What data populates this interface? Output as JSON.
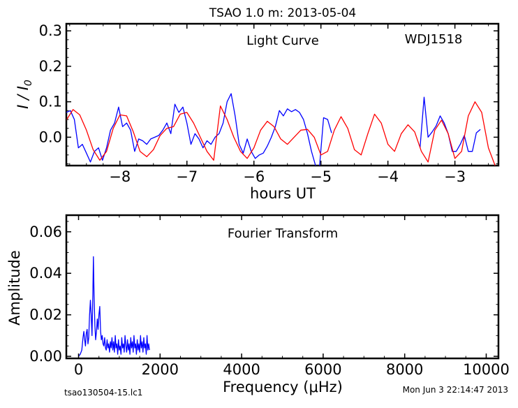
{
  "title": "TSAO 1.0 m:  2013-05-04",
  "footer_left": "tsao130504-15.lc1",
  "footer_right": "Mon Jun  3 22:14:47 2013",
  "chart_data": [
    {
      "type": "line",
      "annotation": "Light Curve",
      "object": "WDJ1518",
      "xlabel": "hours UT",
      "ylabel": "I / I0",
      "xlim": [
        -8.8,
        -2.35
      ],
      "ylim": [
        -0.08,
        0.32
      ],
      "xticks": [
        -8,
        -7,
        -6,
        -5,
        -4,
        -3
      ],
      "xtick_labels": [
        "−8",
        "−7",
        "−6",
        "−5",
        "−4",
        "−3"
      ],
      "yticks": [
        0.0,
        0.1,
        0.2,
        0.3
      ],
      "ytick_labels": [
        "0.0",
        "0.1",
        "0.2",
        "0.3"
      ],
      "series": [
        {
          "color": "#0000ff",
          "segments": [
            [
              [
                -8.8,
                0.07
              ],
              [
                -8.74,
                0.075
              ],
              [
                -8.68,
                0.05
              ],
              [
                -8.62,
                -0.03
              ],
              [
                -8.56,
                -0.02
              ],
              [
                -8.5,
                -0.045
              ],
              [
                -8.44,
                -0.07
              ],
              [
                -8.38,
                -0.04
              ],
              [
                -8.32,
                -0.03
              ],
              [
                -8.26,
                -0.065
              ],
              [
                -8.2,
                -0.03
              ],
              [
                -8.14,
                0.02
              ],
              [
                -8.08,
                0.04
              ],
              [
                -8.02,
                0.085
              ],
              [
                -7.96,
                0.03
              ],
              [
                -7.9,
                0.04
              ],
              [
                -7.84,
                0.02
              ],
              [
                -7.78,
                -0.04
              ],
              [
                -7.72,
                -0.005
              ],
              [
                -7.66,
                -0.01
              ],
              [
                -7.6,
                -0.02
              ],
              [
                -7.54,
                -0.005
              ],
              [
                -7.48,
                0.0
              ],
              [
                -7.42,
                0.005
              ],
              [
                -7.36,
                0.02
              ],
              [
                -7.3,
                0.04
              ],
              [
                -7.24,
                0.01
              ],
              [
                -7.18,
                0.093
              ],
              [
                -7.12,
                0.07
              ],
              [
                -7.06,
                0.085
              ],
              [
                -7.0,
                0.04
              ],
              [
                -6.94,
                -0.02
              ],
              [
                -6.88,
                0.01
              ],
              [
                -6.82,
                -0.005
              ],
              [
                -6.76,
                -0.03
              ],
              [
                -6.7,
                -0.01
              ],
              [
                -6.64,
                -0.02
              ],
              [
                -6.58,
                0.0
              ],
              [
                -6.52,
                0.01
              ],
              [
                -6.46,
                0.04
              ],
              [
                -6.4,
                0.1
              ],
              [
                -6.34,
                0.123
              ],
              [
                -6.28,
                0.06
              ],
              [
                -6.22,
                -0.02
              ],
              [
                -6.16,
                -0.045
              ],
              [
                -6.1,
                -0.005
              ],
              [
                -6.04,
                -0.04
              ],
              [
                -5.98,
                -0.06
              ],
              [
                -5.92,
                -0.05
              ],
              [
                -5.86,
                -0.045
              ],
              [
                -5.8,
                -0.025
              ],
              [
                -5.74,
                0.0
              ],
              [
                -5.68,
                0.03
              ],
              [
                -5.62,
                0.075
              ],
              [
                -5.56,
                0.06
              ],
              [
                -5.5,
                0.08
              ],
              [
                -5.44,
                0.072
              ],
              [
                -5.38,
                0.078
              ],
              [
                -5.32,
                0.07
              ],
              [
                -5.26,
                0.05
              ],
              [
                -5.2,
                0.01
              ],
              [
                -5.14,
                -0.04
              ],
              [
                -5.08,
                -0.08
              ]
            ],
            [
              [
                -5.02,
                -0.08
              ],
              [
                -4.96,
                0.055
              ],
              [
                -4.9,
                0.05
              ],
              [
                -4.84,
                0.012
              ]
            ],
            [
              [
                -3.52,
                -0.03
              ],
              [
                -3.46,
                0.113
              ],
              [
                -3.4,
                0.0
              ],
              [
                -3.34,
                0.015
              ],
              [
                -3.28,
                0.032
              ],
              [
                -3.22,
                0.06
              ],
              [
                -3.16,
                0.04
              ],
              [
                -3.1,
                0.01
              ],
              [
                -3.04,
                -0.04
              ],
              [
                -2.98,
                -0.04
              ],
              [
                -2.92,
                -0.02
              ],
              [
                -2.86,
                0.005
              ],
              [
                -2.8,
                -0.04
              ],
              [
                -2.74,
                -0.04
              ],
              [
                -2.68,
                0.012
              ],
              [
                -2.62,
                0.022
              ]
            ]
          ]
        },
        {
          "color": "#ff0000",
          "segments": [
            [
              [
                -8.8,
                0.048
              ],
              [
                -8.7,
                0.078
              ],
              [
                -8.6,
                0.063
              ],
              [
                -8.5,
                0.02
              ],
              [
                -8.4,
                -0.035
              ],
              [
                -8.3,
                -0.065
              ],
              [
                -8.2,
                -0.04
              ],
              [
                -8.1,
                0.025
              ],
              [
                -8.0,
                0.063
              ],
              [
                -7.9,
                0.06
              ],
              [
                -7.8,
                0.015
              ],
              [
                -7.7,
                -0.04
              ],
              [
                -7.6,
                -0.055
              ],
              [
                -7.5,
                -0.035
              ],
              [
                -7.4,
                0.005
              ],
              [
                -7.3,
                0.025
              ],
              [
                -7.2,
                0.03
              ],
              [
                -7.1,
                0.065
              ],
              [
                -7.0,
                0.07
              ],
              [
                -6.9,
                0.04
              ],
              [
                -6.8,
                0.0
              ],
              [
                -6.7,
                -0.04
              ],
              [
                -6.6,
                -0.065
              ],
              [
                -6.5,
                0.088
              ],
              [
                -6.4,
                0.05
              ],
              [
                -6.3,
                0.0
              ],
              [
                -6.2,
                -0.04
              ],
              [
                -6.1,
                -0.06
              ],
              [
                -6.0,
                -0.03
              ],
              [
                -5.9,
                0.02
              ],
              [
                -5.8,
                0.045
              ],
              [
                -5.7,
                0.03
              ],
              [
                -5.6,
                -0.005
              ],
              [
                -5.5,
                -0.02
              ],
              [
                -5.4,
                0.0
              ],
              [
                -5.3,
                0.02
              ],
              [
                -5.2,
                0.022
              ],
              [
                -5.1,
                0.0
              ],
              [
                -5.0,
                -0.05
              ],
              [
                -4.9,
                -0.04
              ],
              [
                -4.8,
                0.02
              ],
              [
                -4.7,
                0.058
              ],
              [
                -4.6,
                0.025
              ],
              [
                -4.5,
                -0.035
              ],
              [
                -4.4,
                -0.05
              ],
              [
                -4.3,
                0.01
              ],
              [
                -4.2,
                0.065
              ],
              [
                -4.1,
                0.04
              ],
              [
                -4.0,
                -0.02
              ],
              [
                -3.9,
                -0.04
              ],
              [
                -3.8,
                0.01
              ],
              [
                -3.7,
                0.035
              ],
              [
                -3.6,
                0.015
              ],
              [
                -3.5,
                -0.04
              ],
              [
                -3.4,
                -0.07
              ],
              [
                -3.3,
                0.02
              ],
              [
                -3.2,
                0.048
              ],
              [
                -3.1,
                0.01
              ],
              [
                -3.0,
                -0.06
              ],
              [
                -2.9,
                -0.04
              ],
              [
                -2.8,
                0.06
              ],
              [
                -2.7,
                0.1
              ],
              [
                -2.6,
                0.07
              ],
              [
                -2.5,
                -0.03
              ],
              [
                -2.4,
                -0.08
              ]
            ]
          ]
        }
      ]
    },
    {
      "type": "line",
      "annotation": "Fourier Transform",
      "xlabel": "Frequency (μHz)",
      "ylabel": "Amplitude",
      "xlim": [
        -300,
        10300
      ],
      "ylim": [
        -0.001,
        0.068
      ],
      "xticks": [
        0,
        2000,
        4000,
        6000,
        8000,
        10000
      ],
      "xtick_labels": [
        "0",
        "2000",
        "4000",
        "6000",
        "8000",
        "10000"
      ],
      "yticks": [
        0.0,
        0.02,
        0.04,
        0.06
      ],
      "ytick_labels": [
        "0.00",
        "0.02",
        "0.04",
        "0.06"
      ],
      "series": [
        {
          "color": "#0000ff",
          "points": [
            [
              0,
              0
            ],
            [
              40,
              0.001
            ],
            [
              80,
              0.003
            ],
            [
              110,
              0.009
            ],
            [
              130,
              0.012
            ],
            [
              150,
              0.008
            ],
            [
              170,
              0.005
            ],
            [
              190,
              0.011
            ],
            [
              210,
              0.013
            ],
            [
              230,
              0.006
            ],
            [
              250,
              0.009
            ],
            [
              270,
              0.02
            ],
            [
              290,
              0.027
            ],
            [
              310,
              0.02
            ],
            [
              330,
              0.01
            ],
            [
              350,
              0.03
            ],
            [
              365,
              0.048
            ],
            [
              380,
              0.03
            ],
            [
              400,
              0.015
            ],
            [
              420,
              0.008
            ],
            [
              440,
              0.012
            ],
            [
              460,
              0.018
            ],
            [
              480,
              0.013
            ],
            [
              500,
              0.02
            ],
            [
              520,
              0.024
            ],
            [
              540,
              0.012
            ],
            [
              560,
              0.008
            ],
            [
              580,
              0.01
            ],
            [
              600,
              0.006
            ],
            [
              620,
              0.005
            ],
            [
              640,
              0.009
            ],
            [
              660,
              0.004
            ],
            [
              680,
              0.003
            ],
            [
              700,
              0.008
            ],
            [
              720,
              0.004
            ],
            [
              740,
              0.006
            ],
            [
              760,
              0.002
            ],
            [
              780,
              0.007
            ],
            [
              800,
              0.004
            ],
            [
              820,
              0.009
            ],
            [
              840,
              0.003
            ],
            [
              860,
              0.007
            ],
            [
              880,
              0.002
            ],
            [
              900,
              0.01
            ],
            [
              920,
              0.004
            ],
            [
              940,
              0.006
            ],
            [
              960,
              0.001
            ],
            [
              980,
              0.008
            ],
            [
              1000,
              0.003
            ],
            [
              1020,
              0.005
            ],
            [
              1040,
              0.001
            ],
            [
              1060,
              0.009
            ],
            [
              1080,
              0.004
            ],
            [
              1100,
              0.006
            ],
            [
              1120,
              0.002
            ],
            [
              1140,
              0.01
            ],
            [
              1160,
              0.005
            ],
            [
              1180,
              0.002
            ],
            [
              1200,
              0.008
            ],
            [
              1220,
              0.003
            ],
            [
              1240,
              0.006
            ],
            [
              1260,
              0.001
            ],
            [
              1280,
              0.009
            ],
            [
              1300,
              0.004
            ],
            [
              1320,
              0.007
            ],
            [
              1340,
              0.002
            ],
            [
              1360,
              0.01
            ],
            [
              1380,
              0.004
            ],
            [
              1400,
              0.006
            ],
            [
              1420,
              0.001
            ],
            [
              1440,
              0.008
            ],
            [
              1460,
              0.003
            ],
            [
              1480,
              0.006
            ],
            [
              1500,
              0.002
            ],
            [
              1520,
              0.01
            ],
            [
              1540,
              0.004
            ],
            [
              1560,
              0.007
            ],
            [
              1580,
              0.002
            ],
            [
              1600,
              0.009
            ],
            [
              1620,
              0.004
            ],
            [
              1640,
              0.006
            ],
            [
              1660,
              0.001
            ],
            [
              1680,
              0.01
            ],
            [
              1700,
              0.003
            ],
            [
              1720,
              0.006
            ],
            [
              1740,
              0.003
            ]
          ]
        }
      ]
    }
  ]
}
